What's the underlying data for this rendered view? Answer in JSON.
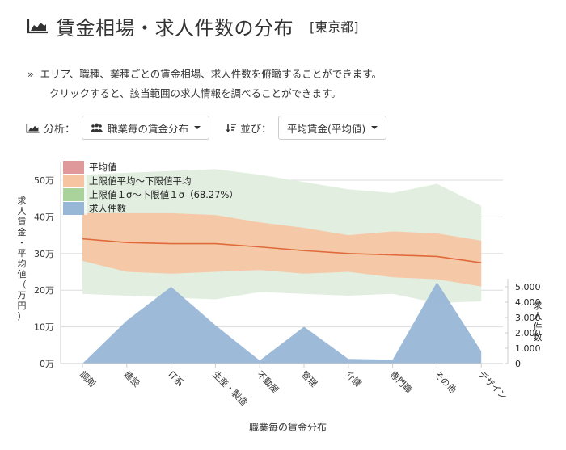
{
  "header": {
    "icon": "area-chart-icon",
    "title": "賃金相場・求人件数の分布",
    "area": "[東京都]"
  },
  "description": {
    "bullet": "»",
    "line1": "エリア、職種、業種ごとの賃金相場、求人件数を俯瞰することができます。",
    "line2": "クリックすると、該当範囲の求人情報を調べることができます。"
  },
  "controls": {
    "analysis_label": "分析：",
    "analysis_value": "職業毎の賃金分布",
    "sort_label": "並び：",
    "sort_value": "平均賃金(平均値)"
  },
  "colors": {
    "mean": "#e0999a",
    "mean_line": "#e06a3a",
    "range_avg": "#f7c4a2",
    "range_sigma": "#a9d39b",
    "sigma_fill": "#e2efe0",
    "count": "#98b6d6"
  },
  "chart_data": {
    "type": "area",
    "title": "",
    "xlabel": "職業毎の賃金分布",
    "ylabel": "求人賃金・平均値（万円）",
    "y2label": "求人件数",
    "categories": [
      "調剤",
      "建設",
      "IT系",
      "生産・製造",
      "不動産",
      "管理",
      "介護",
      "専門職",
      "その他",
      "デザイン"
    ],
    "ylim": [
      0,
      55
    ],
    "yticks": [
      "0万",
      "10万",
      "20万",
      "30万",
      "40万",
      "50万"
    ],
    "y2lim": [
      0,
      5500
    ],
    "y2ticks": [
      "0",
      "1,000",
      "2,000",
      "3,000",
      "4,000",
      "5,000"
    ],
    "legend": [
      "平均値",
      "上限値平均〜下限値平均",
      "上限値１σ〜下限値１σ（68.27%）",
      "求人件数"
    ],
    "legend_position": "top-left",
    "grid": true,
    "series": [
      {
        "name": "平均値",
        "values": [
          34.0,
          33.0,
          32.7,
          32.7,
          31.8,
          30.8,
          30.0,
          29.6,
          29.2,
          27.5
        ]
      },
      {
        "name": "上限値平均",
        "values": [
          41.0,
          41.0,
          41.0,
          40.5,
          38.5,
          37.0,
          35.0,
          36.0,
          35.5,
          33.5
        ]
      },
      {
        "name": "下限値平均",
        "values": [
          28.0,
          25.0,
          24.5,
          25.0,
          25.5,
          24.5,
          25.0,
          23.5,
          23.0,
          21.0
        ]
      },
      {
        "name": "上限値１σ",
        "values": [
          51.5,
          52.0,
          52.5,
          53.0,
          51.5,
          49.5,
          47.5,
          46.5,
          49.0,
          43.0
        ]
      },
      {
        "name": "下限値１σ",
        "values": [
          19.0,
          18.5,
          18.0,
          17.5,
          19.5,
          19.0,
          18.5,
          19.0,
          16.5,
          17.0
        ]
      },
      {
        "name": "求人件数",
        "axis": "right",
        "values": [
          0,
          2800,
          5000,
          2500,
          200,
          2400,
          300,
          250,
          5300,
          800
        ]
      }
    ]
  }
}
